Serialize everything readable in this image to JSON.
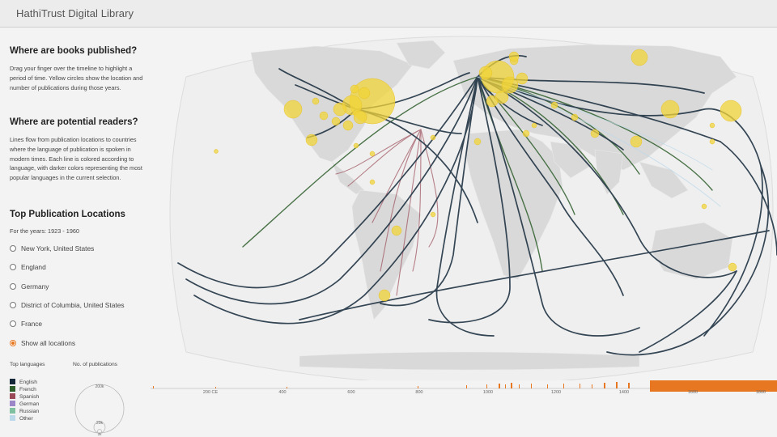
{
  "header": {
    "title": "HathiTrust Digital Library"
  },
  "sidebar": {
    "section1": {
      "heading": "Where are books published?",
      "body": "Drag your finger over the timeline to highlight a period of time. Yellow circles show the location and number of publications during those years."
    },
    "section2": {
      "heading": "Where are potential readers?",
      "body": "Lines flow from publication locations to countries where the language of publication is spoken in modern times. Each line is colored according to language, with darker colors representing the most popular languages in the current selection."
    },
    "section3": {
      "heading": "Top Publication Locations",
      "years": "For the years: 1923 - 1960"
    },
    "locations": [
      {
        "label": "New York, United States",
        "selected": false
      },
      {
        "label": "England",
        "selected": false
      },
      {
        "label": "Germany",
        "selected": false
      },
      {
        "label": "District of Columbia, United States",
        "selected": false
      },
      {
        "label": "France",
        "selected": false
      },
      {
        "label": "Show all locations",
        "selected": true
      }
    ],
    "legend": {
      "languages_title": "Top languages",
      "pubs_title": "No. of publications",
      "languages": [
        {
          "name": "English",
          "color": "#14283a"
        },
        {
          "name": "French",
          "color": "#2e5e2c"
        },
        {
          "name": "Spanish",
          "color": "#9a4a57"
        },
        {
          "name": "German",
          "color": "#9b86c7"
        },
        {
          "name": "Russian",
          "color": "#7fc0a0"
        },
        {
          "name": "Other",
          "color": "#bcd9ea"
        }
      ],
      "size_big": "200k",
      "size_mid": "20k",
      "size_small": "2k"
    }
  },
  "timeline": {
    "labels": [
      "200 CE",
      "400",
      "600",
      "800",
      "1000",
      "1200",
      "1400",
      "1600",
      "1800"
    ],
    "color": "#e87722"
  },
  "map": {
    "land_color": "#dcdcdc",
    "circle_color": "#f2d43a"
  }
}
